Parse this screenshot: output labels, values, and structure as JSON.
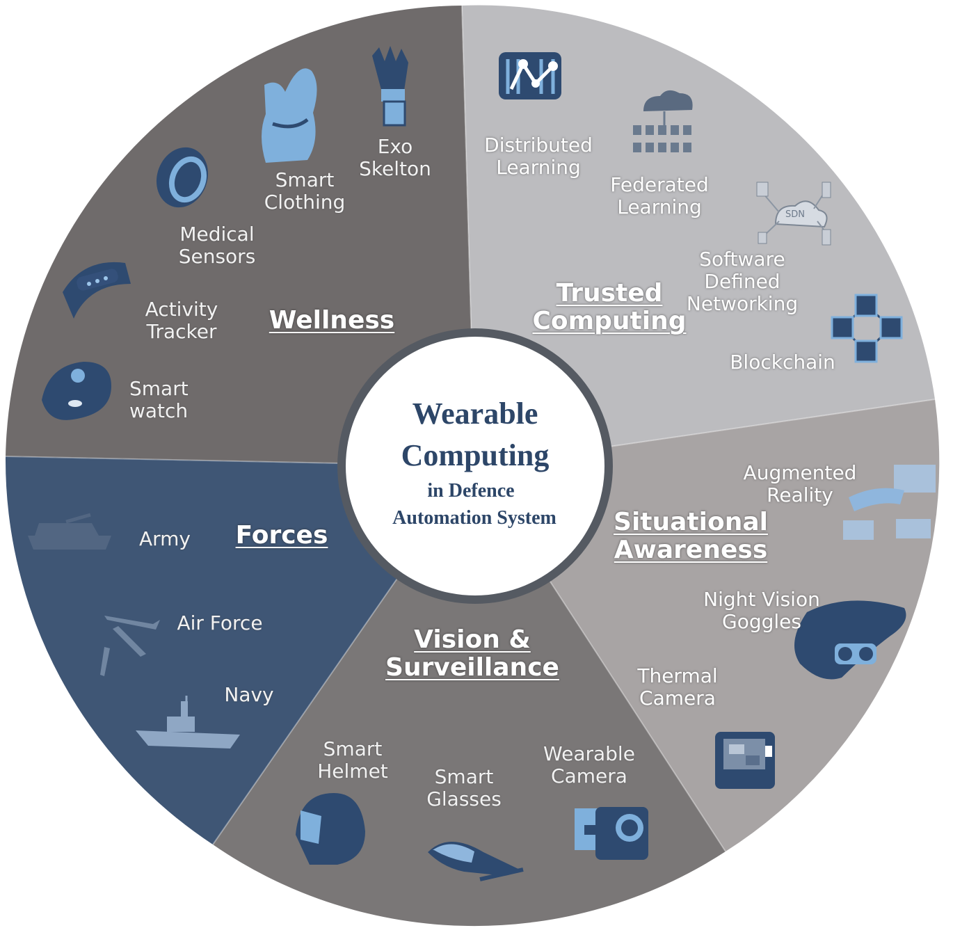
{
  "center": {
    "title_line1": "Wearable",
    "title_line2": "Computing",
    "subtitle_line1": "in Defence",
    "subtitle_line2": "Automation System"
  },
  "sections": {
    "wellness": {
      "title": "Wellness",
      "color": "#6f6b6b",
      "items": {
        "exo_skeleton": "Exo\nSkelton",
        "smart_clothing": "Smart\nClothing",
        "medical_sensors": "Medical\nSensors",
        "activity_tracker": "Activity\nTracker",
        "smart_watch": "Smart\nwatch"
      }
    },
    "trusted_computing": {
      "title": "Trusted\nComputing",
      "color": "#bcbcbf",
      "items": {
        "distributed_learning": "Distributed\nLearning",
        "federated_learning": "Federated\nLearning",
        "sdn": "Software\nDefined\nNetworking",
        "blockchain": "Blockchain",
        "sdn_badge": "SDN"
      }
    },
    "situational_awareness": {
      "title": "Situational\nAwareness",
      "color": "#a8a4a4",
      "items": {
        "augmented_reality": "Augmented\nReality",
        "night_vision": "Night Vision\nGoggles",
        "thermal_camera": "Thermal\nCamera"
      }
    },
    "vision_surveillance": {
      "title": "Vision &\nSurveillance",
      "color": "#7a7777",
      "items": {
        "smart_helmet": "Smart\nHelmet",
        "smart_glasses": "Smart\nGlasses",
        "wearable_camera": "Wearable\nCamera"
      }
    },
    "forces": {
      "title": "Forces",
      "color": "#3f5675",
      "items": {
        "army": "Army",
        "air_force": "Air Force",
        "navy": "Navy"
      }
    }
  },
  "colors": {
    "accent_blue": "#2e4a70",
    "icon_light_blue": "#7fb0dc",
    "ring": "#555a62",
    "center_bg": "#ffffff"
  }
}
